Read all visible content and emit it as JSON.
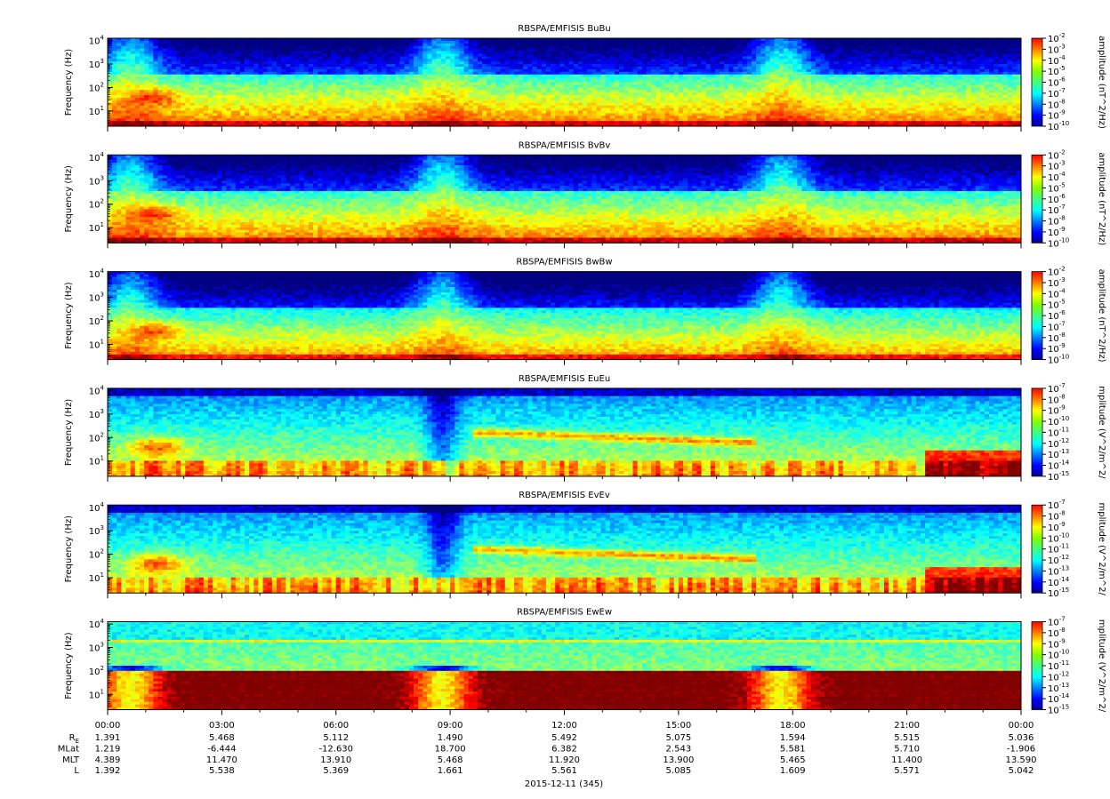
{
  "chart_data": {
    "type": "heatmap",
    "date_label": "2015-12-11 (345)",
    "x_ticks": [
      "00:00",
      "03:00",
      "06:00",
      "09:00",
      "12:00",
      "15:00",
      "18:00",
      "21:00",
      "00:00"
    ],
    "ephemeris": [
      {
        "label": "R",
        "sub": "E",
        "values": [
          "1.391",
          "5.468",
          "5.112",
          "1.490",
          "5.492",
          "5.075",
          "1.594",
          "5.515",
          "5.036"
        ]
      },
      {
        "label": "MLat",
        "sub": "",
        "values": [
          "1.219",
          "-6.444",
          "-12.630",
          "18.700",
          "6.382",
          "2.543",
          "5.581",
          "5.710",
          "-1.906"
        ]
      },
      {
        "label": "MLT",
        "sub": "",
        "values": [
          "4.389",
          "11.470",
          "13.910",
          "5.468",
          "11.920",
          "13.900",
          "5.465",
          "11.400",
          "13.590"
        ]
      },
      {
        "label": "L",
        "sub": "",
        "values": [
          "1.392",
          "5.538",
          "5.369",
          "1.661",
          "5.561",
          "5.085",
          "1.609",
          "5.571",
          "5.042"
        ]
      }
    ],
    "panels": [
      {
        "title": "RBSPA/EMFISIS  BuBu",
        "ylabel": "Frequency (Hz)",
        "y_tick_exps": [
          "1",
          "2",
          "3",
          "4"
        ],
        "colorbar_label": "amplitude (nT^2/Hz)",
        "colorbar_exps": [
          "-2",
          "-3",
          "-4",
          "-5",
          "-6",
          "-7",
          "-8",
          "-9",
          "-10"
        ],
        "kind": "B"
      },
      {
        "title": "RBSPA/EMFISIS  BvBv",
        "ylabel": "Frequency (Hz)",
        "y_tick_exps": [
          "1",
          "2",
          "3",
          "4"
        ],
        "colorbar_label": "amplitude (nT^2/Hz)",
        "colorbar_exps": [
          "-2",
          "-3",
          "-4",
          "-5",
          "-6",
          "-7",
          "-8",
          "-9",
          "-10"
        ],
        "kind": "B"
      },
      {
        "title": "RBSPA/EMFISIS  BwBw",
        "ylabel": "Frequency (Hz)",
        "y_tick_exps": [
          "1",
          "2",
          "3",
          "4"
        ],
        "colorbar_label": "amplitude (nT^2/Hz)",
        "colorbar_exps": [
          "-2",
          "-3",
          "-4",
          "-5",
          "-6",
          "-7",
          "-8",
          "-9",
          "-10"
        ],
        "kind": "Bw"
      },
      {
        "title": "RBSPA/EMFISIS  EuEu",
        "ylabel": "Frequency (Hz)",
        "y_tick_exps": [
          "1",
          "2",
          "3",
          "4"
        ],
        "colorbar_label": "mplitude (V^2/m^2/",
        "colorbar_exps": [
          "-7",
          "-8",
          "-9",
          "-10",
          "-11",
          "-12",
          "-13",
          "-14",
          "-15"
        ],
        "kind": "E"
      },
      {
        "title": "RBSPA/EMFISIS  EvEv",
        "ylabel": "Frequency (Hz)",
        "y_tick_exps": [
          "1",
          "2",
          "3",
          "4"
        ],
        "colorbar_label": "mplitude (V^2/m^2/",
        "colorbar_exps": [
          "-7",
          "-8",
          "-9",
          "-10",
          "-11",
          "-12",
          "-13",
          "-14",
          "-15"
        ],
        "kind": "E"
      },
      {
        "title": "RBSPA/EMFISIS  EwEw",
        "ylabel": "Frequency (Hz)",
        "y_tick_exps": [
          "1",
          "2",
          "3",
          "4"
        ],
        "colorbar_label": "mplitude (V^2/m^2/",
        "colorbar_exps": [
          "-7",
          "-8",
          "-9",
          "-10",
          "-11",
          "-12",
          "-13",
          "-14",
          "-15"
        ],
        "kind": "Ew"
      }
    ]
  }
}
